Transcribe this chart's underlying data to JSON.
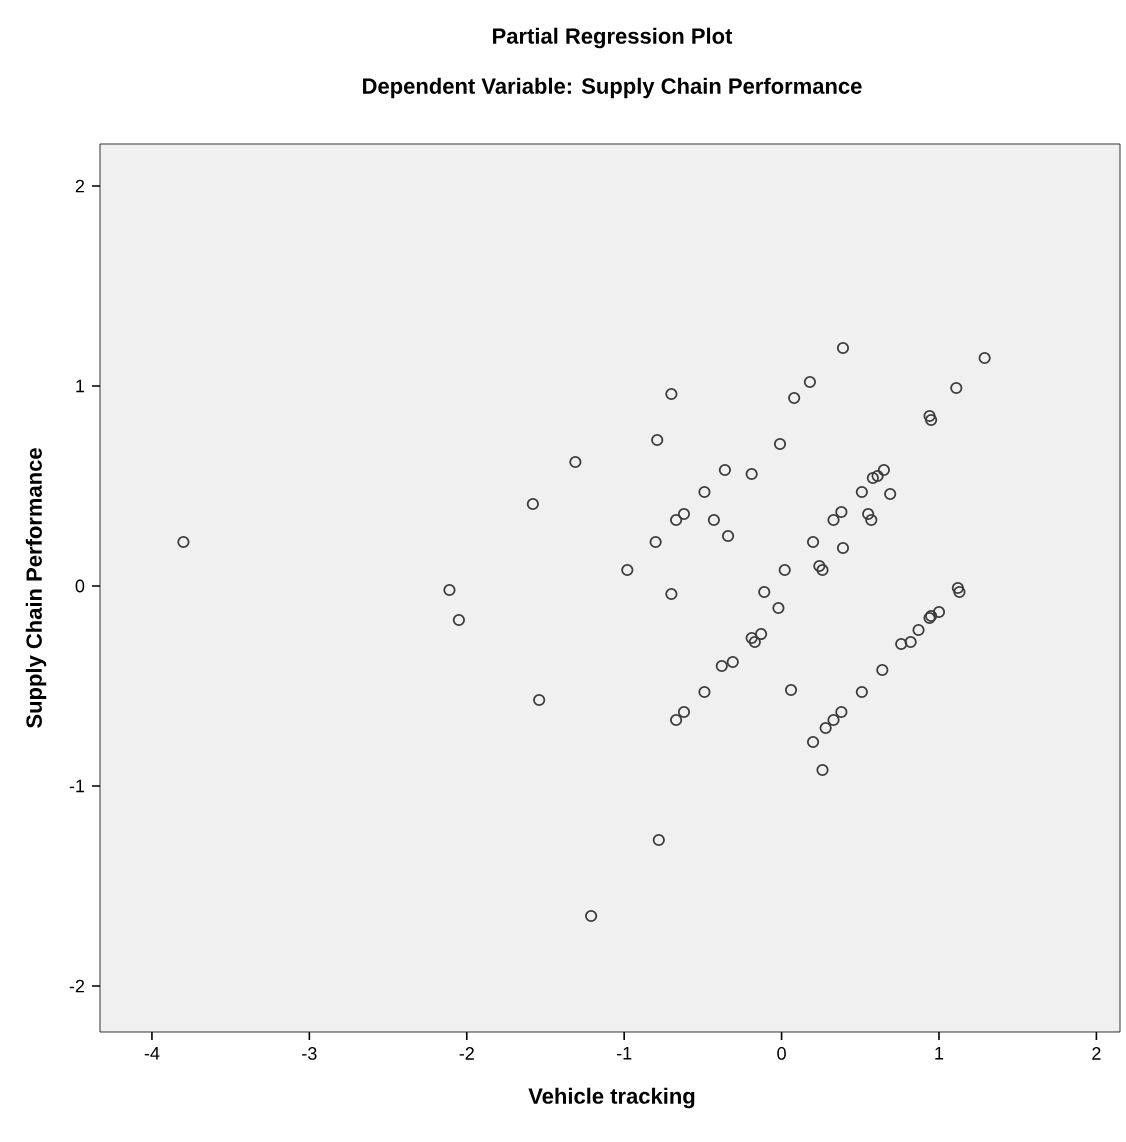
{
  "chart_data": {
    "type": "scatter",
    "title": "Partial Regression Plot",
    "subtitle": "Dependent Variable: Supply Chain Performance",
    "xlabel": "Vehicle tracking",
    "ylabel": "Supply Chain Performance",
    "xlim": [
      -4.33,
      2.15
    ],
    "ylim": [
      -2.23,
      2.21
    ],
    "xticks": [
      -4,
      -3,
      -2,
      -1,
      0,
      1,
      2
    ],
    "yticks": [
      -2,
      -1,
      0,
      1,
      2
    ],
    "marker": "circle",
    "series": [
      {
        "color": "#3c3c3c",
        "x": [
          -3.8,
          -1.58,
          -1.31,
          -2.11,
          -2.05,
          0.39,
          1.29,
          -0.7,
          0.18,
          0.08,
          1.11,
          0.94,
          0.95,
          -0.79,
          -0.01,
          -0.36,
          -0.19,
          -0.49,
          -0.62,
          -0.67,
          -0.43,
          -0.34,
          -0.8,
          -0.98,
          -0.7,
          0.65,
          0.61,
          0.58,
          0.51,
          0.69,
          0.38,
          0.33,
          0.55,
          0.57,
          0.2,
          0.39,
          0.24,
          0.26,
          0.02,
          -0.11,
          -0.02,
          -0.19,
          -0.13,
          -0.17,
          1.12,
          1.13,
          0.95,
          0.94,
          1.0,
          0.87,
          0.82,
          0.76,
          -1.54,
          -0.78,
          -1.21,
          -0.31,
          -0.38,
          -0.49,
          -0.62,
          -0.67,
          0.06,
          0.64,
          0.51,
          0.38,
          0.33,
          0.28,
          0.2,
          0.26
        ],
        "values": [
          0.22,
          0.41,
          0.62,
          -0.02,
          -0.17,
          1.19,
          1.14,
          0.96,
          1.02,
          0.94,
          0.99,
          0.85,
          0.83,
          0.73,
          0.71,
          0.58,
          0.56,
          0.47,
          0.36,
          0.33,
          0.33,
          0.25,
          0.22,
          0.08,
          -0.04,
          0.58,
          0.55,
          0.54,
          0.47,
          0.46,
          0.37,
          0.33,
          0.36,
          0.33,
          0.22,
          0.19,
          0.1,
          0.08,
          0.08,
          -0.03,
          -0.11,
          -0.26,
          -0.24,
          -0.28,
          -0.01,
          -0.03,
          -0.15,
          -0.16,
          -0.13,
          -0.22,
          -0.28,
          -0.29,
          -0.57,
          -1.27,
          -1.65,
          -0.38,
          -0.4,
          -0.53,
          -0.63,
          -0.67,
          -0.52,
          -0.42,
          -0.53,
          -0.63,
          -0.67,
          -0.71,
          -0.78,
          -0.92
        ]
      }
    ]
  }
}
